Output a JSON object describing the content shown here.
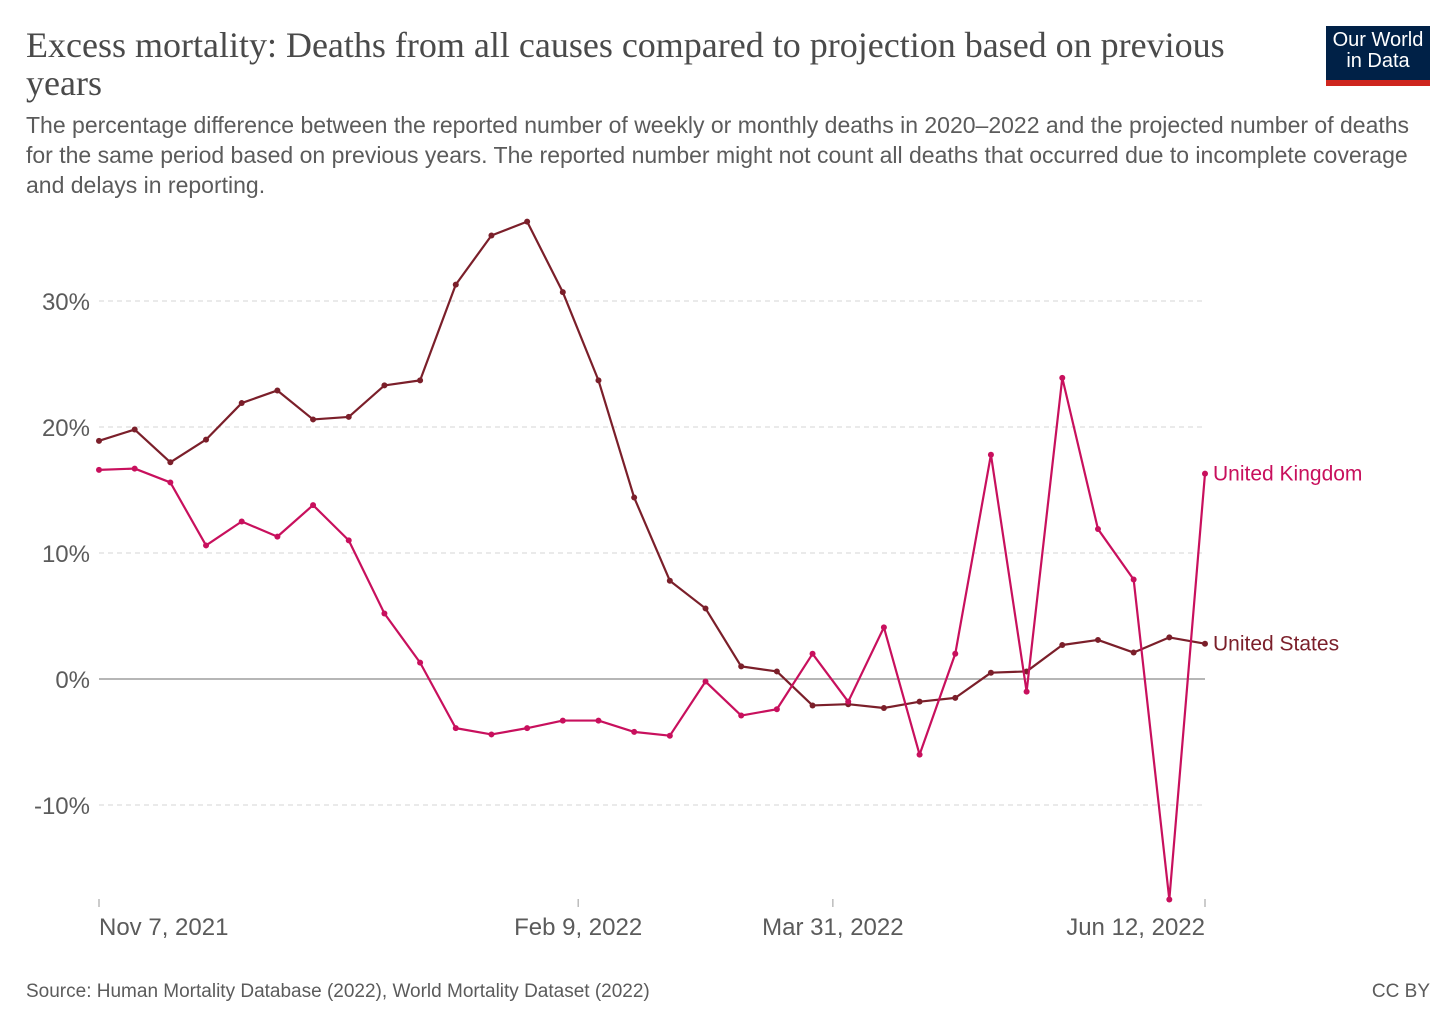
{
  "header": {
    "title": "Excess mortality: Deaths from all causes compared to projection based on previous years",
    "subtitle": "The percentage difference between the reported number of weekly or monthly deaths in 2020–2022 and the projected number of deaths for the same period based on previous years. The reported number might not count all deaths that occurred due to incomplete coverage and delays in reporting.",
    "logo": "Our World in Data"
  },
  "footer": {
    "source": "Source: Human Mortality Database (2022), World Mortality Dataset (2022)",
    "license": "CC BY"
  },
  "chart_data": {
    "type": "line",
    "title": "Excess mortality: Deaths from all causes compared to projection based on previous years",
    "xlabel": "",
    "ylabel": "",
    "x_unit": "weeks since Nov 7, 2021",
    "x": [
      0,
      1,
      2,
      3,
      4,
      5,
      6,
      7,
      8,
      9,
      10,
      11,
      12,
      13,
      14,
      15,
      16,
      17,
      18,
      19,
      20,
      21,
      22,
      23,
      24,
      25,
      26,
      27,
      28,
      29,
      30,
      31
    ],
    "xlim": [
      0,
      31
    ],
    "ylim": [
      -18,
      36.5
    ],
    "x_ticks": [
      {
        "label": "Nov 7, 2021",
        "x": 0
      },
      {
        "label": "Feb 9, 2022",
        "x": 13.43
      },
      {
        "label": "Mar 31, 2022",
        "x": 20.57
      },
      {
        "label": "Jun 12, 2022",
        "x": 31
      }
    ],
    "y_ticks": [
      {
        "label": "-10%",
        "value": -10
      },
      {
        "label": "0%",
        "value": 0
      },
      {
        "label": "10%",
        "value": 10
      },
      {
        "label": "20%",
        "value": 20
      },
      {
        "label": "30%",
        "value": 30
      }
    ],
    "grid": true,
    "legend": "end-of-line labels, right",
    "series": [
      {
        "name": "United States",
        "color": "#7b1f2a",
        "values": [
          18.9,
          19.8,
          17.2,
          19.0,
          21.9,
          22.9,
          20.6,
          20.8,
          23.3,
          23.7,
          31.3,
          35.2,
          36.3,
          30.7,
          23.7,
          14.4,
          7.8,
          5.6,
          1.0,
          0.6,
          -2.1,
          -2.0,
          -2.3,
          -1.8,
          -1.5,
          0.5,
          0.6,
          2.7,
          3.1,
          2.1,
          3.3,
          2.8
        ]
      },
      {
        "name": "United Kingdom",
        "color": "#c8105d",
        "values": [
          16.6,
          16.7,
          15.6,
          10.6,
          12.5,
          11.3,
          13.8,
          11.0,
          5.2,
          1.3,
          -3.9,
          -4.4,
          -3.9,
          -3.3,
          -3.3,
          -4.2,
          -4.5,
          -0.2,
          -2.9,
          -2.4,
          2.0,
          -1.8,
          4.1,
          -6.0,
          2.0,
          17.8,
          -1.0,
          23.9,
          11.9,
          7.9,
          -17.5,
          16.3
        ]
      }
    ]
  }
}
